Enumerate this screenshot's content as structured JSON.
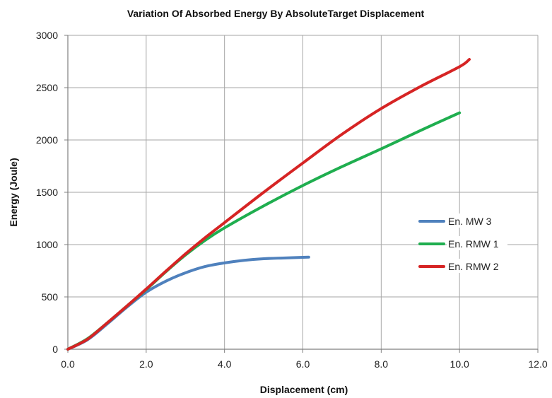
{
  "chart_data": {
    "type": "line",
    "title": "Variation  Of  Absorbed  Energy  By  AbsoluteTarget  Displacement",
    "xlabel": "Displacement  (cm)",
    "ylabel": "Energy (Joule)",
    "xlim": [
      0,
      12
    ],
    "ylim": [
      0,
      3000
    ],
    "xticks": [
      0,
      2,
      4,
      6,
      8,
      10,
      12
    ],
    "xtick_labels": [
      "0.0",
      "2.0",
      "4.0",
      "6.0",
      "8.0",
      "10.0",
      "12.0"
    ],
    "yticks": [
      0,
      500,
      1000,
      1500,
      2000,
      2500,
      3000
    ],
    "ytick_labels": [
      "0",
      "500",
      "1000",
      "1500",
      "2000",
      "2500",
      "3000"
    ],
    "grid": true,
    "legend_position": "right",
    "series": [
      {
        "name": "En. MW 3",
        "color": "#4f81bd",
        "x": [
          0,
          0.5,
          1.0,
          1.5,
          2.0,
          2.5,
          3.0,
          3.5,
          4.0,
          4.5,
          5.0,
          5.5,
          6.0,
          6.15
        ],
        "y": [
          0,
          90,
          240,
          400,
          545,
          650,
          730,
          790,
          825,
          850,
          865,
          872,
          878,
          880
        ]
      },
      {
        "name": "En. RMW 1",
        "color": "#1fae4f",
        "x": [
          0,
          0.5,
          1.0,
          1.5,
          2.0,
          2.5,
          3.0,
          3.5,
          4.0,
          5.0,
          6.0,
          7.0,
          8.0,
          9.0,
          10.0
        ],
        "y": [
          0,
          100,
          250,
          410,
          570,
          740,
          900,
          1040,
          1160,
          1370,
          1565,
          1745,
          1915,
          2090,
          2260
        ]
      },
      {
        "name": "En. RMW 2",
        "color": "#d62424",
        "x": [
          0,
          0.5,
          1.0,
          1.5,
          2.0,
          2.5,
          3.0,
          3.5,
          4.0,
          5.0,
          6.0,
          7.0,
          8.0,
          9.0,
          10.0,
          10.25
        ],
        "y": [
          0,
          95,
          250,
          410,
          575,
          745,
          910,
          1065,
          1210,
          1500,
          1780,
          2055,
          2300,
          2510,
          2700,
          2770
        ]
      }
    ]
  }
}
